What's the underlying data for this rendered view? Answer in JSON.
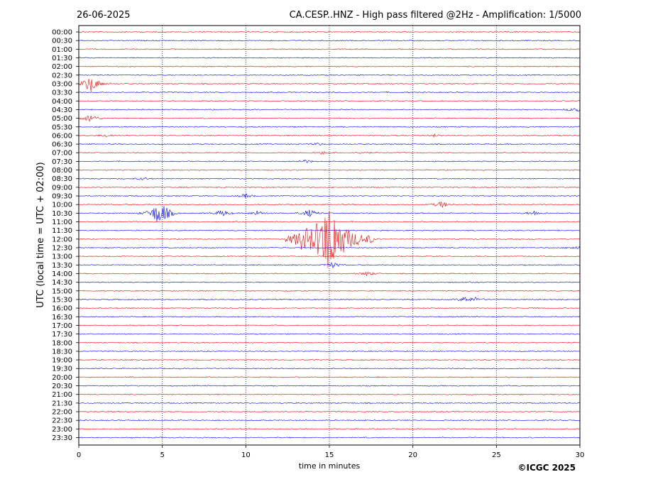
{
  "header": {
    "date": "26-06-2025",
    "title": "CA.CESP..HNZ - High pass filtered @2Hz - Amplification: 1/5000"
  },
  "footer": {
    "copyright": "©ICGC 2025"
  },
  "chart_data": {
    "type": "line",
    "title": "CA.CESP..HNZ - High pass filtered @2Hz - Amplification: 1/5000",
    "xlabel": "time in minutes",
    "ylabel": "UTC (local time = UTC + 02:00)",
    "xlim": [
      0,
      30
    ],
    "x_ticks": [
      0,
      5,
      10,
      15,
      20,
      25,
      30
    ],
    "grid": "vertical dotted lines at 5-minute intervals",
    "trace_colors": [
      "#ff0000",
      "#0000ff"
    ],
    "rows": [
      "00:00",
      "00:30",
      "01:00",
      "01:30",
      "02:00",
      "02:30",
      "03:00",
      "03:30",
      "04:00",
      "04:30",
      "05:00",
      "05:30",
      "06:00",
      "06:30",
      "07:00",
      "07:30",
      "08:00",
      "08:30",
      "09:00",
      "09:30",
      "10:00",
      "10:30",
      "11:00",
      "11:30",
      "12:00",
      "12:30",
      "13:00",
      "13:30",
      "14:00",
      "14:30",
      "15:00",
      "15:30",
      "16:00",
      "16:30",
      "17:00",
      "17:30",
      "18:00",
      "18:30",
      "19:00",
      "19:30",
      "20:00",
      "20:30",
      "21:00",
      "21:30",
      "22:00",
      "22:30",
      "23:00",
      "23:30"
    ],
    "events": [
      {
        "row": "03:00",
        "minute": 0.7,
        "amplitude": 1.0
      },
      {
        "row": "04:30",
        "minute": 29.8,
        "amplitude": 0.35
      },
      {
        "row": "05:00",
        "minute": 0.7,
        "amplitude": 0.5
      },
      {
        "row": "06:00",
        "minute": 1.6,
        "amplitude": 0.2
      },
      {
        "row": "06:00",
        "minute": 21.3,
        "amplitude": 0.15
      },
      {
        "row": "06:30",
        "minute": 14.3,
        "amplitude": 0.15
      },
      {
        "row": "07:00",
        "minute": 14.6,
        "amplitude": 0.2
      },
      {
        "row": "07:00",
        "minute": 17.0,
        "amplitude": 0.15
      },
      {
        "row": "07:30",
        "minute": 13.5,
        "amplitude": 0.2
      },
      {
        "row": "08:30",
        "minute": 3.8,
        "amplitude": 0.15
      },
      {
        "row": "09:30",
        "minute": 10.0,
        "amplitude": 0.25
      },
      {
        "row": "10:00",
        "minute": 21.7,
        "amplitude": 0.4
      },
      {
        "row": "10:30",
        "minute": 4.7,
        "amplitude": 1.0
      },
      {
        "row": "10:30",
        "minute": 5.1,
        "amplitude": 0.6
      },
      {
        "row": "10:30",
        "minute": 8.6,
        "amplitude": 0.4
      },
      {
        "row": "10:30",
        "minute": 10.7,
        "amplitude": 0.3
      },
      {
        "row": "10:30",
        "minute": 13.8,
        "amplitude": 0.45
      },
      {
        "row": "10:30",
        "minute": 27.3,
        "amplitude": 0.3
      },
      {
        "row": "12:00",
        "minute": 13.4,
        "amplitude": 0.7
      },
      {
        "row": "12:00",
        "minute": 15.0,
        "amplitude": 4.2
      },
      {
        "row": "12:00",
        "minute": 17.4,
        "amplitude": 0.2
      },
      {
        "row": "12:30",
        "minute": 29.8,
        "amplitude": 0.25
      },
      {
        "row": "13:30",
        "minute": 15.2,
        "amplitude": 0.35
      },
      {
        "row": "14:00",
        "minute": 17.3,
        "amplitude": 0.25
      },
      {
        "row": "15:30",
        "minute": 23.1,
        "amplitude": 0.3
      },
      {
        "row": "15:30",
        "minute": 23.8,
        "amplitude": 0.25
      }
    ]
  }
}
